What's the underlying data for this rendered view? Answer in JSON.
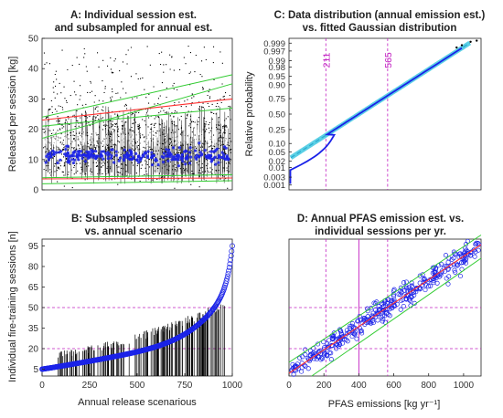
{
  "chart_data": [
    {
      "panel": "A",
      "type": "scatter",
      "title_lines": [
        "A: Individual session est.",
        "and subsampled for annual est."
      ],
      "ylabel": "Released per session [kg]",
      "xlabel": "",
      "ylim": [
        0,
        50
      ],
      "yticks": [
        "0",
        "10",
        "20",
        "30",
        "40",
        "50"
      ],
      "xticks": [],
      "series": [
        {
          "values_range": [
            0,
            50
          ],
          "color": "#000000"
        },
        {
          "values_range": [
            9,
            14
          ],
          "color": "#1a22e8"
        },
        {
          "values_range": [
            23,
            32
          ],
          "color": "#ff3030"
        },
        {
          "values_range": [
            25,
            38
          ],
          "color": "#33cc33"
        }
      ]
    },
    {
      "panel": "C",
      "type": "line",
      "title_lines": [
        "C: Data distribution (annual emission est.)",
        "vs. fitted Gaussian distribution"
      ],
      "ylabel": "Relative probability",
      "xlabel": "",
      "yticks": [
        "0.001",
        "0.003",
        "0.01",
        "0.02",
        "0.05",
        "0.10",
        "0.25",
        "0.50",
        "0.75",
        "0.90",
        "0.95",
        "0.98",
        "0.99",
        "0.997",
        "0.999"
      ],
      "xlim": [
        0,
        1100
      ],
      "vlines": [
        {
          "x": 211,
          "label": "211"
        },
        {
          "x": 565,
          "label": "565"
        }
      ],
      "series": [
        {
          "name": "data",
          "color": "#1a22e8"
        },
        {
          "name": "fit",
          "color": "#40c8e0"
        }
      ]
    },
    {
      "panel": "B",
      "type": "scatter",
      "title_lines": [
        "B: Subsampled sessions",
        "vs. annual scenario"
      ],
      "ylabel": "Individual fire-training sessions [n]",
      "xlabel": "Annual release scenarious",
      "xlim": [
        0,
        1000
      ],
      "xticks": [
        "0",
        "250",
        "500",
        "750",
        "1000"
      ],
      "yticks": [
        "5",
        "20",
        "35",
        "50",
        "65",
        "80",
        "95"
      ],
      "ylim": [
        0,
        100
      ],
      "hlines": [
        20,
        50
      ],
      "series": [
        {
          "color": "#1a22e8",
          "y_start": 5,
          "y_end": 95
        }
      ]
    },
    {
      "panel": "D",
      "type": "scatter",
      "title_lines": [
        "D: Annual PFAS emission est. vs.",
        "individual sessions per yr."
      ],
      "xlabel": "PFAS emissions [kg yr⁻¹]",
      "ylabel": "",
      "xlim": [
        0,
        1100
      ],
      "xticks": [
        "0",
        "200",
        "400",
        "600",
        "800",
        "1000"
      ],
      "ylim": [
        0,
        100
      ],
      "hlines": [
        20,
        50
      ],
      "vlines": [
        211,
        400,
        565
      ],
      "series": [
        {
          "name": "points",
          "color": "#1a22e8"
        },
        {
          "name": "fit",
          "color": "#ff3030"
        },
        {
          "name": "bounds",
          "color": "#33cc33"
        }
      ]
    }
  ]
}
